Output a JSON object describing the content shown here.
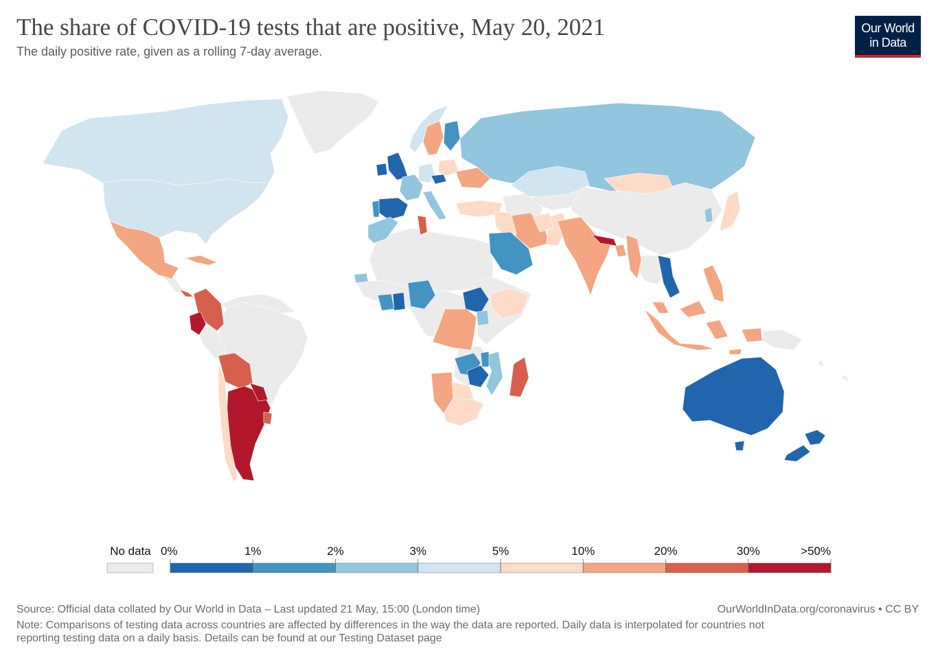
{
  "header": {
    "title": "The share of COVID-19 tests that are positive, May 20, 2021",
    "subtitle": "The daily positive rate, given as a rolling 7-day average."
  },
  "logo": {
    "line1": "Our World",
    "line2": "in Data"
  },
  "legend": {
    "no_data_label": "No data",
    "no_data_color": "#ebebeb",
    "ticks": [
      "0%",
      "1%",
      "2%",
      "3%",
      "5%",
      "10%",
      "20%",
      "30%",
      ">50%"
    ],
    "colors": [
      "#2166ac",
      "#4393c3",
      "#92c5de",
      "#d1e5f0",
      "#fddbc7",
      "#f4a582",
      "#d6604d",
      "#b2182b"
    ]
  },
  "footer": {
    "source": "Source: Official data collated by Our World in Data – Last updated 21 May, 15:00 (London time)",
    "credit": "OurWorldInData.org/coronavirus • CC BY",
    "note_line1": "Note: Comparisons of testing data across countries are affected by differences in the way the data are reported. Daily data is interpolated for countries not",
    "note_line2": "reporting testing data on a daily basis. Details can be found at our Testing Dataset page"
  },
  "regions": [
    {
      "name": "Canada",
      "band": 3
    },
    {
      "name": "United States",
      "band": 3
    },
    {
      "name": "Mexico",
      "band": 5
    },
    {
      "name": "Cuba",
      "band": 5
    },
    {
      "name": "Panama",
      "band": 6
    },
    {
      "name": "Colombia",
      "band": 6
    },
    {
      "name": "Ecuador",
      "band": 7
    },
    {
      "name": "Bolivia",
      "band": 6
    },
    {
      "name": "Argentina",
      "band": 7
    },
    {
      "name": "Paraguay",
      "band": 7
    },
    {
      "name": "Chile",
      "band": 4
    },
    {
      "name": "Uruguay",
      "band": 6
    },
    {
      "name": "United Kingdom",
      "band": 0
    },
    {
      "name": "Ireland",
      "band": 0
    },
    {
      "name": "Spain",
      "band": 0
    },
    {
      "name": "Portugal",
      "band": 1
    },
    {
      "name": "France",
      "band": 2
    },
    {
      "name": "Italy",
      "band": 2
    },
    {
      "name": "Germany",
      "band": 3
    },
    {
      "name": "Czechia",
      "band": 0
    },
    {
      "name": "Poland",
      "band": 4
    },
    {
      "name": "Ukraine",
      "band": 5
    },
    {
      "name": "Sweden",
      "band": 5
    },
    {
      "name": "Norway",
      "band": 3
    },
    {
      "name": "Finland",
      "band": 1
    },
    {
      "name": "Turkey",
      "band": 4
    },
    {
      "name": "Russia",
      "band": 2
    },
    {
      "name": "Kazakhstan",
      "band": 3
    },
    {
      "name": "Mongolia",
      "band": 4
    },
    {
      "name": "Japan",
      "band": 4
    },
    {
      "name": "South Korea",
      "band": 2
    },
    {
      "name": "Iran",
      "band": 5
    },
    {
      "name": "Iraq",
      "band": 4
    },
    {
      "name": "Saudi Arabia",
      "band": 1
    },
    {
      "name": "Pakistan",
      "band": 4
    },
    {
      "name": "Afghanistan",
      "band": 4
    },
    {
      "name": "India",
      "band": 5
    },
    {
      "name": "Nepal",
      "band": 7
    },
    {
      "name": "Bangladesh",
      "band": 5
    },
    {
      "name": "Myanmar",
      "band": 5
    },
    {
      "name": "Vietnam",
      "band": 0
    },
    {
      "name": "Philippines",
      "band": 5
    },
    {
      "name": "Malaysia",
      "band": 5
    },
    {
      "name": "Indonesia",
      "band": 5
    },
    {
      "name": "Timor",
      "band": 5
    },
    {
      "name": "Morocco",
      "band": 2
    },
    {
      "name": "Tunisia",
      "band": 6
    },
    {
      "name": "Nigeria",
      "band": 1
    },
    {
      "name": "Cote d'Ivoire",
      "band": 1
    },
    {
      "name": "Ghana",
      "band": 0
    },
    {
      "name": "Senegal",
      "band": 2
    },
    {
      "name": "South Sudan",
      "band": 0
    },
    {
      "name": "Ethiopia",
      "band": 4
    },
    {
      "name": "Democratic Republic of Congo",
      "band": 5
    },
    {
      "name": "Uganda",
      "band": 2
    },
    {
      "name": "Zambia",
      "band": 1
    },
    {
      "name": "Zimbabwe",
      "band": 0
    },
    {
      "name": "Mozambique",
      "band": 2
    },
    {
      "name": "Malawi",
      "band": 1
    },
    {
      "name": "Namibia",
      "band": 5
    },
    {
      "name": "Botswana",
      "band": 4
    },
    {
      "name": "South Africa",
      "band": 4
    },
    {
      "name": "Madagascar",
      "band": 6
    },
    {
      "name": "Australia",
      "band": 0
    },
    {
      "name": "New Zealand",
      "band": 0
    }
  ]
}
